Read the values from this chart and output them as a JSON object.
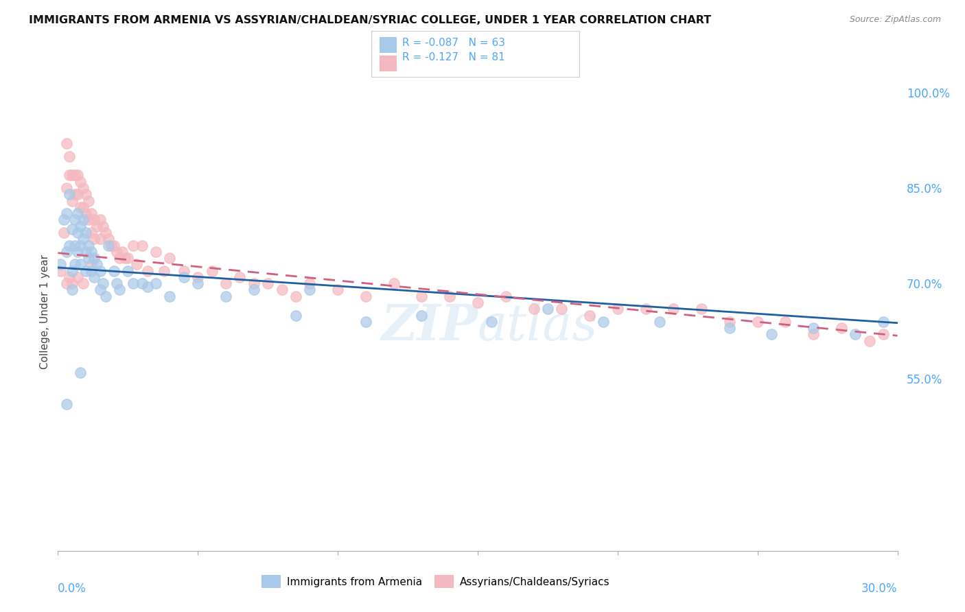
{
  "title": "IMMIGRANTS FROM ARMENIA VS ASSYRIAN/CHALDEAN/SYRIAC COLLEGE, UNDER 1 YEAR CORRELATION CHART",
  "source": "Source: ZipAtlas.com",
  "ylabel": "College, Under 1 year",
  "xlim": [
    0.0,
    0.3
  ],
  "ylim": [
    0.28,
    1.03
  ],
  "yticks_right": [
    1.0,
    0.85,
    0.7,
    0.55
  ],
  "ytick_labels_right": [
    "100.0%",
    "85.0%",
    "70.0%",
    "55.0%"
  ],
  "legend_r1": "R = -0.087",
  "legend_n1": "N = 63",
  "legend_r2": "R = -0.127",
  "legend_n2": "N = 81",
  "color_blue": "#a8c8e8",
  "color_pink": "#f4b8c0",
  "color_trend_blue": "#2060a0",
  "color_trend_pink": "#d06080",
  "watermark": "ZIPatlas",
  "legend1_label": "Immigrants from Armenia",
  "legend2_label": "Assyrians/Chaldeans/Syriacs",
  "blue_x": [
    0.001,
    0.002,
    0.003,
    0.003,
    0.004,
    0.004,
    0.005,
    0.005,
    0.005,
    0.006,
    0.006,
    0.006,
    0.007,
    0.007,
    0.007,
    0.008,
    0.008,
    0.008,
    0.009,
    0.009,
    0.01,
    0.01,
    0.01,
    0.011,
    0.011,
    0.012,
    0.012,
    0.013,
    0.013,
    0.014,
    0.015,
    0.015,
    0.016,
    0.017,
    0.018,
    0.02,
    0.021,
    0.022,
    0.025,
    0.027,
    0.03,
    0.032,
    0.035,
    0.04,
    0.045,
    0.05,
    0.06,
    0.07,
    0.085,
    0.09,
    0.11,
    0.13,
    0.155,
    0.175,
    0.195,
    0.215,
    0.24,
    0.255,
    0.27,
    0.285,
    0.295,
    0.003,
    0.008
  ],
  "blue_y": [
    0.73,
    0.8,
    0.75,
    0.81,
    0.76,
    0.84,
    0.785,
    0.72,
    0.69,
    0.8,
    0.76,
    0.73,
    0.81,
    0.78,
    0.75,
    0.79,
    0.76,
    0.73,
    0.8,
    0.77,
    0.78,
    0.75,
    0.72,
    0.76,
    0.74,
    0.75,
    0.72,
    0.74,
    0.71,
    0.73,
    0.72,
    0.69,
    0.7,
    0.68,
    0.76,
    0.72,
    0.7,
    0.69,
    0.72,
    0.7,
    0.7,
    0.695,
    0.7,
    0.68,
    0.71,
    0.7,
    0.68,
    0.69,
    0.65,
    0.69,
    0.64,
    0.65,
    0.64,
    0.66,
    0.64,
    0.64,
    0.63,
    0.62,
    0.63,
    0.62,
    0.64,
    0.51,
    0.56
  ],
  "pink_x": [
    0.001,
    0.002,
    0.003,
    0.003,
    0.004,
    0.004,
    0.005,
    0.005,
    0.006,
    0.006,
    0.007,
    0.007,
    0.008,
    0.008,
    0.009,
    0.009,
    0.01,
    0.01,
    0.011,
    0.011,
    0.012,
    0.012,
    0.013,
    0.013,
    0.014,
    0.015,
    0.015,
    0.016,
    0.017,
    0.018,
    0.019,
    0.02,
    0.021,
    0.022,
    0.023,
    0.024,
    0.025,
    0.027,
    0.028,
    0.03,
    0.032,
    0.035,
    0.038,
    0.04,
    0.045,
    0.05,
    0.055,
    0.06,
    0.065,
    0.07,
    0.075,
    0.08,
    0.085,
    0.09,
    0.1,
    0.11,
    0.12,
    0.13,
    0.14,
    0.15,
    0.16,
    0.17,
    0.18,
    0.19,
    0.2,
    0.21,
    0.22,
    0.23,
    0.24,
    0.25,
    0.26,
    0.27,
    0.28,
    0.29,
    0.295,
    0.003,
    0.004,
    0.005,
    0.007,
    0.009,
    0.012
  ],
  "pink_y": [
    0.72,
    0.78,
    0.85,
    0.92,
    0.87,
    0.9,
    0.87,
    0.83,
    0.87,
    0.84,
    0.87,
    0.84,
    0.86,
    0.82,
    0.85,
    0.82,
    0.84,
    0.81,
    0.83,
    0.8,
    0.81,
    0.78,
    0.8,
    0.77,
    0.79,
    0.8,
    0.77,
    0.79,
    0.78,
    0.77,
    0.76,
    0.76,
    0.75,
    0.74,
    0.75,
    0.74,
    0.74,
    0.76,
    0.73,
    0.76,
    0.72,
    0.75,
    0.72,
    0.74,
    0.72,
    0.71,
    0.72,
    0.7,
    0.71,
    0.7,
    0.7,
    0.69,
    0.68,
    0.7,
    0.69,
    0.68,
    0.7,
    0.68,
    0.68,
    0.67,
    0.68,
    0.66,
    0.66,
    0.65,
    0.66,
    0.66,
    0.66,
    0.66,
    0.64,
    0.64,
    0.64,
    0.62,
    0.63,
    0.61,
    0.62,
    0.7,
    0.71,
    0.7,
    0.71,
    0.7,
    0.73
  ],
  "trend_blue_x0": 0.0,
  "trend_blue_y0": 0.725,
  "trend_blue_x1": 0.3,
  "trend_blue_y1": 0.638,
  "trend_pink_x0": 0.0,
  "trend_pink_y0": 0.748,
  "trend_pink_x1": 0.3,
  "trend_pink_y1": 0.618
}
